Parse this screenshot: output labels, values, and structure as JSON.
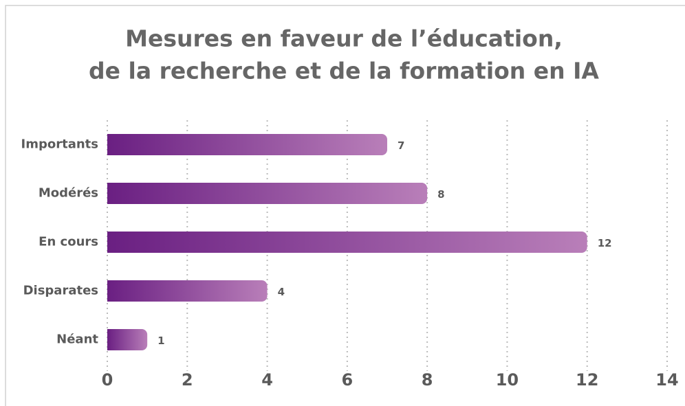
{
  "chart_data": {
    "type": "bar",
    "orientation": "horizontal",
    "title": [
      "Mesures en faveur de l’éducation,",
      "de la recherche et de la formation en IA"
    ],
    "categories": [
      "Importants",
      "Modérés",
      "En cours",
      "Disparates",
      "Néant"
    ],
    "values": [
      7,
      8,
      12,
      4,
      1
    ],
    "color": [
      "#6a1f82",
      "#b97fb9"
    ],
    "xlim": [
      0,
      14
    ],
    "xticks": [
      0,
      2,
      4,
      6,
      8,
      10,
      12,
      14
    ],
    "grid": true
  }
}
